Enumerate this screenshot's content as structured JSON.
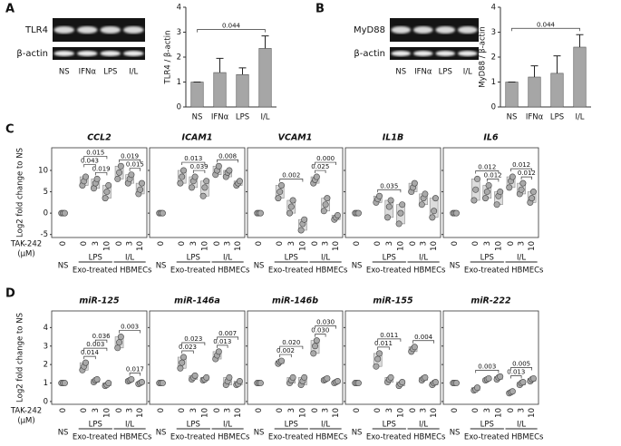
{
  "panel_labels": [
    "A",
    "B",
    "C",
    "D"
  ],
  "blots": [
    {
      "target": "TLR4",
      "loading": "β-actin",
      "lanes": [
        "NS",
        "IFNα",
        "LPS",
        "I/L"
      ]
    },
    {
      "target": "MyD88",
      "loading": "β-actin",
      "lanes": [
        "NS",
        "IFNα",
        "LPS",
        "I/L"
      ]
    }
  ],
  "rows": [
    {
      "ylabel": "Log2 fold change to NS",
      "treatment": "TAK-242",
      "unit": "(μM)"
    },
    {
      "ylabel": "Log2 fold change to NS",
      "treatment": "TAK-242",
      "unit": "(μM)"
    }
  ],
  "chart_data": [
    {
      "type": "bar",
      "ylabel": "TLR4 / β-actin",
      "categories": [
        "NS",
        "IFNα",
        "LPS",
        "I/L"
      ],
      "values": [
        1,
        1.38,
        1.3,
        2.35
      ],
      "errors": [
        0,
        0.57,
        0.27,
        0.5
      ],
      "color": "#a6a6a6",
      "ylim": [
        0,
        4
      ],
      "yticks": [
        0,
        1,
        2,
        3,
        4
      ],
      "annotations": [
        {
          "from": 0,
          "to": 3,
          "label": "0.044"
        }
      ]
    },
    {
      "type": "bar",
      "ylabel": "MyD88 / β-actin",
      "categories": [
        "NS",
        "IFNα",
        "LPS",
        "I/L"
      ],
      "values": [
        1,
        1.2,
        1.35,
        2.4
      ],
      "errors": [
        0,
        0.45,
        0.7,
        0.5
      ],
      "color": "#a6a6a6",
      "ylim": [
        0,
        4
      ],
      "yticks": [
        0,
        1,
        2,
        3,
        4
      ],
      "annotations": [
        {
          "from": 0,
          "to": 3,
          "label": "0.044"
        }
      ]
    },
    {
      "type": "range-dot",
      "title": "CCL2",
      "categories": [
        "0",
        "0",
        "3",
        "10",
        "0",
        "3",
        "10"
      ],
      "groups": [
        "NS",
        "LPS",
        "I/L"
      ],
      "xlabel": "Exo-treated HBMECs",
      "values": [
        [
          0,
          0,
          0
        ],
        [
          6.5,
          7.5,
          8.5
        ],
        [
          5.8,
          7,
          8
        ],
        [
          3.5,
          5,
          6.5
        ],
        [
          8,
          9.5,
          11
        ],
        [
          7,
          8,
          9
        ],
        [
          4.5,
          5.5,
          7
        ]
      ],
      "ylim": [
        -5.7,
        15.3
      ],
      "yticks": [
        -5,
        0,
        5,
        10
      ],
      "annotations": [
        {
          "from": 2,
          "to": 3,
          "label": "0.019"
        },
        {
          "from": 1,
          "to": 2,
          "label": "0.043"
        },
        {
          "from": 1,
          "to": 3,
          "label": "0.015"
        },
        {
          "from": 5,
          "to": 6,
          "label": "0.015"
        },
        {
          "from": 4,
          "to": 6,
          "label": "0.019"
        }
      ]
    },
    {
      "type": "range-dot",
      "title": "ICAM1",
      "categories": [
        "0",
        "0",
        "3",
        "10",
        "0",
        "3",
        "10"
      ],
      "groups": [
        "NS",
        "LPS",
        "I/L"
      ],
      "xlabel": "Exo-treated HBMECs",
      "values": [
        [
          0,
          0,
          0
        ],
        [
          7,
          8.5,
          10
        ],
        [
          6,
          7.5,
          8.5
        ],
        [
          4,
          6,
          7.5
        ],
        [
          9,
          10,
          11
        ],
        [
          8.5,
          9.5,
          10
        ],
        [
          6.5,
          7,
          7.5
        ]
      ],
      "ylim": [
        -5.7,
        15.3
      ],
      "yticks": [
        -5,
        0,
        5,
        10
      ],
      "annotations": [
        {
          "from": 2,
          "to": 3,
          "label": "0.039"
        },
        {
          "from": 1,
          "to": 3,
          "label": "0.013"
        },
        {
          "from": 4,
          "to": 6,
          "label": "0.008"
        }
      ]
    },
    {
      "type": "range-dot",
      "title": "VCAM1",
      "categories": [
        "0",
        "0",
        "3",
        "10",
        "0",
        "3",
        "10"
      ],
      "groups": [
        "NS",
        "LPS",
        "I/L"
      ],
      "xlabel": "Exo-treated HBMECs",
      "values": [
        [
          0,
          0,
          0
        ],
        [
          3.5,
          5,
          6.5
        ],
        [
          0,
          1.5,
          3
        ],
        [
          -4,
          -2.5,
          -1.5
        ],
        [
          7,
          7.8,
          8.5
        ],
        [
          0.5,
          2,
          3.5
        ],
        [
          -1.5,
          -1,
          -0.5
        ]
      ],
      "ylim": [
        -5.7,
        15.3
      ],
      "yticks": [
        -5,
        0,
        5,
        10
      ],
      "annotations": [
        {
          "from": 1,
          "to": 3,
          "label": "0.002"
        },
        {
          "from": 4,
          "to": 5,
          "label": "0.025"
        },
        {
          "from": 4,
          "to": 6,
          "label": "0.000"
        }
      ]
    },
    {
      "type": "range-dot",
      "title": "IL1B",
      "categories": [
        "0",
        "0",
        "3",
        "10",
        "0",
        "3",
        "10"
      ],
      "groups": [
        "NS",
        "LPS",
        "I/L"
      ],
      "xlabel": "Exo-treated HBMECs",
      "values": [
        [
          0,
          0,
          0
        ],
        [
          2.5,
          3.3,
          4
        ],
        [
          -1,
          1.5,
          3
        ],
        [
          -2.5,
          0,
          2
        ],
        [
          5,
          6,
          7
        ],
        [
          2,
          3.5,
          4.5
        ],
        [
          -1,
          0.5,
          3.5
        ]
      ],
      "ylim": [
        -5.7,
        15.3
      ],
      "yticks": [
        -5,
        0,
        5,
        10
      ],
      "annotations": [
        {
          "from": 1,
          "to": 3,
          "label": "0.035"
        }
      ]
    },
    {
      "type": "range-dot",
      "title": "IL6",
      "categories": [
        "0",
        "0",
        "3",
        "10",
        "0",
        "3",
        "10"
      ],
      "groups": [
        "NS",
        "LPS",
        "I/L"
      ],
      "xlabel": "Exo-treated HBMECs",
      "values": [
        [
          0,
          0,
          0
        ],
        [
          3,
          5.5,
          8
        ],
        [
          3.5,
          5,
          6.5
        ],
        [
          2,
          4,
          5
        ],
        [
          6,
          7.5,
          8.5
        ],
        [
          4.5,
          5.5,
          7
        ],
        [
          2.5,
          3.5,
          5
        ]
      ],
      "ylim": [
        -5.7,
        15.3
      ],
      "yticks": [
        -5,
        0,
        5,
        10
      ],
      "annotations": [
        {
          "from": 2,
          "to": 3,
          "label": "0.012"
        },
        {
          "from": 1,
          "to": 3,
          "label": "0.012"
        },
        {
          "from": 5,
          "to": 6,
          "label": "0.012"
        },
        {
          "from": 4,
          "to": 6,
          "label": "0.012"
        }
      ]
    },
    {
      "type": "range-dot",
      "title": "miR-125",
      "categories": [
        "0",
        "0",
        "3",
        "10",
        "0",
        "3",
        "10"
      ],
      "groups": [
        "NS",
        "LPS",
        "I/L"
      ],
      "xlabel": "Exo-treated HBMECs",
      "values": [
        [
          1,
          1,
          1
        ],
        [
          1.7,
          1.9,
          2.1
        ],
        [
          1.05,
          1.15,
          1.2
        ],
        [
          0.85,
          0.9,
          1
        ],
        [
          2.9,
          3.2,
          3.5
        ],
        [
          1.1,
          1.15,
          1.2
        ],
        [
          0.95,
          1,
          1.05
        ]
      ],
      "ylim": [
        -0.15,
        4.9
      ],
      "yticks": [
        0,
        1,
        2,
        3,
        4
      ],
      "annotations": [
        {
          "from": 1,
          "to": 2,
          "label": "0.014"
        },
        {
          "from": 1,
          "to": 3,
          "label": "0.003"
        },
        {
          "from": 2,
          "to": 3,
          "label": "0.036"
        },
        {
          "from": 5,
          "to": 6,
          "label": "0.017"
        },
        {
          "from": 4,
          "to": 6,
          "label": "0.003"
        }
      ]
    },
    {
      "type": "range-dot",
      "title": "miR-146a",
      "categories": [
        "0",
        "0",
        "3",
        "10",
        "0",
        "3",
        "10"
      ],
      "groups": [
        "NS",
        "LPS",
        "I/L"
      ],
      "xlabel": "Exo-treated HBMECs",
      "values": [
        [
          1,
          1,
          1
        ],
        [
          1.8,
          2.1,
          2.4
        ],
        [
          1.2,
          1.3,
          1.4
        ],
        [
          1.15,
          1.2,
          1.3
        ],
        [
          2.3,
          2.5,
          2.7
        ],
        [
          0.9,
          1.1,
          1.3
        ],
        [
          0.9,
          0.95,
          1.1
        ]
      ],
      "ylim": [
        -0.15,
        4.9
      ],
      "yticks": [
        0,
        1,
        2,
        3,
        4
      ],
      "annotations": [
        {
          "from": 1,
          "to": 2,
          "label": "0.023"
        },
        {
          "from": 1,
          "to": 3,
          "label": "0.023"
        },
        {
          "from": 4,
          "to": 5,
          "label": "0.013"
        },
        {
          "from": 4,
          "to": 6,
          "label": "0.007"
        }
      ]
    },
    {
      "type": "range-dot",
      "title": "miR-146b",
      "categories": [
        "0",
        "0",
        "3",
        "10",
        "0",
        "3",
        "10"
      ],
      "groups": [
        "NS",
        "LPS",
        "I/L"
      ],
      "xlabel": "Exo-treated HBMECs",
      "values": [
        [
          1,
          1,
          1
        ],
        [
          2.05,
          2.15,
          2.2
        ],
        [
          1,
          1.15,
          1.3
        ],
        [
          0.9,
          1.1,
          1.3
        ],
        [
          2.6,
          3,
          3.3
        ],
        [
          1.15,
          1.2,
          1.25
        ],
        [
          1,
          1.05,
          1.1
        ]
      ],
      "ylim": [
        -0.15,
        4.9
      ],
      "yticks": [
        0,
        1,
        2,
        3,
        4
      ],
      "annotations": [
        {
          "from": 1,
          "to": 2,
          "label": "0.002"
        },
        {
          "from": 1,
          "to": 3,
          "label": "0.020"
        },
        {
          "from": 4,
          "to": 5,
          "label": "0.030"
        },
        {
          "from": 4,
          "to": 6,
          "label": "0.030"
        }
      ]
    },
    {
      "type": "range-dot",
      "title": "miR-155",
      "categories": [
        "0",
        "0",
        "3",
        "10",
        "0",
        "3",
        "10"
      ],
      "groups": [
        "NS",
        "LPS",
        "I/L"
      ],
      "xlabel": "Exo-treated HBMECs",
      "values": [
        [
          1,
          1,
          1
        ],
        [
          1.9,
          2.3,
          2.6
        ],
        [
          1.05,
          1.2,
          1.3
        ],
        [
          0.85,
          0.95,
          1.05
        ],
        [
          2.7,
          2.85,
          2.95
        ],
        [
          1.15,
          1.25,
          1.3
        ],
        [
          0.9,
          1,
          1.05
        ]
      ],
      "ylim": [
        -0.15,
        4.9
      ],
      "yticks": [
        0,
        1,
        2,
        3,
        4
      ],
      "annotations": [
        {
          "from": 1,
          "to": 2,
          "label": "0.011"
        },
        {
          "from": 1,
          "to": 3,
          "label": "0.011"
        },
        {
          "from": 4,
          "to": 6,
          "label": "0.004"
        }
      ]
    },
    {
      "type": "range-dot",
      "title": "miR-222",
      "categories": [
        "0",
        "0",
        "3",
        "10",
        "0",
        "3",
        "10"
      ],
      "groups": [
        "NS",
        "LPS",
        "I/L"
      ],
      "xlabel": "Exo-treated HBMECs",
      "values": [
        [
          1,
          1,
          1
        ],
        [
          0.6,
          0.65,
          0.75
        ],
        [
          1.15,
          1.2,
          1.25
        ],
        [
          1.2,
          1.3,
          1.35
        ],
        [
          0.45,
          0.5,
          0.55
        ],
        [
          0.9,
          1,
          1.05
        ],
        [
          1.1,
          1.2,
          1.25
        ]
      ],
      "ylim": [
        -0.15,
        4.9
      ],
      "yticks": [
        0,
        1,
        2,
        3,
        4
      ],
      "annotations": [
        {
          "from": 1,
          "to": 3,
          "label": "0.003"
        },
        {
          "from": 4,
          "to": 5,
          "label": "0.013"
        },
        {
          "from": 4,
          "to": 6,
          "label": "0.005"
        }
      ]
    }
  ]
}
